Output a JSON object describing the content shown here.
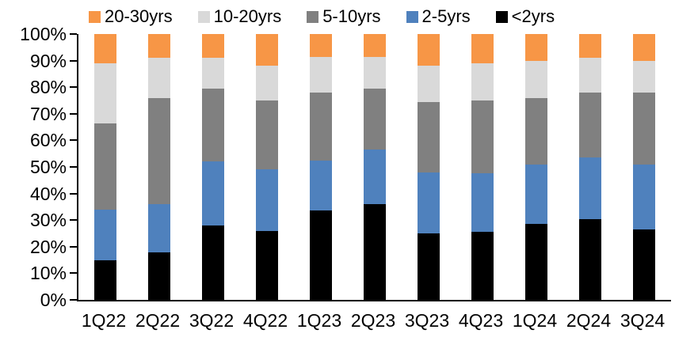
{
  "chart_data": {
    "type": "bar",
    "variant": "stacked-100",
    "title": "",
    "unit": "%",
    "grid": false,
    "legend_position": "top",
    "categories": [
      "1Q22",
      "2Q22",
      "3Q22",
      "4Q22",
      "1Q23",
      "2Q23",
      "3Q23",
      "4Q23",
      "1Q24",
      "2Q24",
      "3Q24"
    ],
    "series": [
      {
        "name": "20-30yrs",
        "color": "#F79646",
        "values": [
          11,
          9,
          9,
          12,
          8.5,
          8.5,
          12,
          11,
          10,
          9,
          10
        ]
      },
      {
        "name": "10-20yrs",
        "color": "#D9D9D9",
        "values": [
          22.5,
          15,
          11.5,
          13,
          13.5,
          12,
          13.5,
          14,
          14,
          13,
          12
        ]
      },
      {
        "name": "5-10yrs",
        "color": "#808080",
        "values": [
          32.5,
          40,
          27.5,
          26,
          25.5,
          23,
          26.5,
          27.5,
          25,
          24.5,
          27
        ]
      },
      {
        "name": "2-5yrs",
        "color": "#4F81BD",
        "values": [
          19,
          18,
          24,
          23,
          19,
          20.5,
          23,
          22,
          22.5,
          23,
          24.5
        ]
      },
      {
        "name": "<2yrs",
        "color": "#000000",
        "values": [
          15,
          18,
          28,
          26,
          33.5,
          36,
          25,
          25.5,
          28.5,
          30.5,
          26.5
        ]
      }
    ],
    "y_axis": {
      "min": 0,
      "max": 100,
      "step": 10,
      "tick_labels": [
        "0%",
        "10%",
        "20%",
        "30%",
        "40%",
        "50%",
        "60%",
        "70%",
        "80%",
        "90%",
        "100%"
      ]
    }
  }
}
